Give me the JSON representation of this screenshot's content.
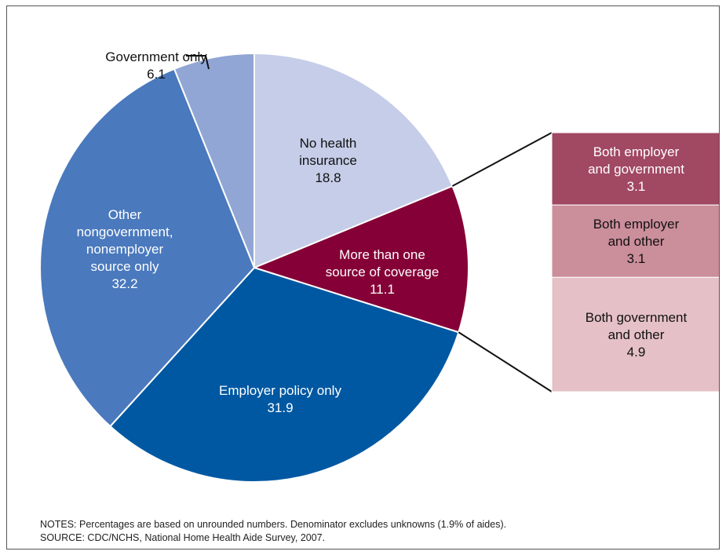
{
  "chart_data": {
    "type": "pie",
    "slices": [
      {
        "label": "No health insurance",
        "label_lines": [
          "No health",
          "insurance"
        ],
        "value": 18.8,
        "value_text": "18.8",
        "color": "#c5cde8",
        "text_color": "#111111"
      },
      {
        "label": "More than one source of coverage",
        "label_lines": [
          "More than one",
          "source of coverage"
        ],
        "value": 11.1,
        "value_text": "11.1",
        "color": "#850036",
        "text_color": "#ffffff"
      },
      {
        "label": "Employer policy only",
        "label_lines": [
          "Employer policy only"
        ],
        "value": 31.9,
        "value_text": "31.9",
        "color": "#0058a2",
        "text_color": "#ffffff"
      },
      {
        "label": "Other nongovernment, nonemployer source only",
        "label_lines": [
          "Other",
          "nongovernment,",
          "nonemployer",
          "source only"
        ],
        "value": 32.2,
        "value_text": "32.2",
        "color": "#4a79bd",
        "text_color": "#ffffff"
      },
      {
        "label": "Government only",
        "label_lines": [
          "Government only"
        ],
        "value": 6.1,
        "value_text": "6.1",
        "color": "#91a6d4",
        "text_color": "#111111"
      }
    ],
    "breakdown": {
      "of": "More than one source of coverage",
      "segments": [
        {
          "label": "Both employer and government",
          "label_lines": [
            "Both employer",
            "and government"
          ],
          "value": 3.1,
          "value_text": "3.1",
          "color": "#a14863",
          "text_color": "#ffffff"
        },
        {
          "label": "Both employer and other",
          "label_lines": [
            "Both employer",
            "and other"
          ],
          "value": 3.1,
          "value_text": "3.1",
          "color": "#cb8e9b",
          "text_color": "#111111"
        },
        {
          "label": "Both government and other",
          "label_lines": [
            "Both government",
            "and other"
          ],
          "value": 4.9,
          "value_text": "4.9",
          "color": "#e5c0c7",
          "text_color": "#111111"
        }
      ]
    }
  },
  "notes": {
    "line1": "NOTES: Percentages are based on unrounded numbers. Denominator excludes unknowns (1.9% of aides).",
    "line2": "SOURCE: CDC/NCHS, National Home Health Aide Survey, 2007."
  }
}
